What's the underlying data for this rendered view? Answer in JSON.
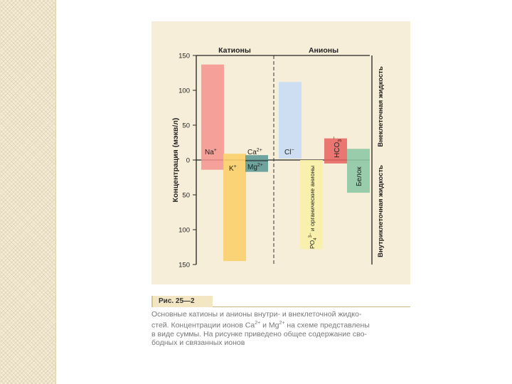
{
  "chart_data": {
    "type": "bar",
    "ylabel": "Концентрация (мэкв/л)",
    "top_region_label": "Внеклеточная жидкость",
    "bottom_region_label": "Внутриклеточная жидкость",
    "yticks": [
      "150",
      "100",
      "50",
      "0",
      "50",
      "100",
      "150"
    ],
    "ylim": [
      -150,
      150
    ],
    "groups": [
      {
        "label": "Катионы"
      },
      {
        "label": "Анионы"
      }
    ],
    "bars": [
      {
        "label": "Na+",
        "extra": [
          137,
          -14
        ],
        "color": "#f5938e"
      },
      {
        "label": "K+",
        "extra": [
          9,
          -145
        ],
        "color": "#f9cf6a"
      },
      {
        "label": "Ca2+ / Mg2+",
        "extra": [
          7,
          -17
        ],
        "color": "#5f9b96"
      },
      {
        "label": "Cl−",
        "extra": [
          112,
          2
        ],
        "color": "#c9dcf4"
      },
      {
        "label": "PO43− и органические анионы",
        "extra": [
          0,
          -128
        ],
        "color": "#fbf0a7"
      },
      {
        "label": "HCO3−",
        "extra": [
          31,
          -5
        ],
        "color": "#e7605f"
      },
      {
        "label": "Белок",
        "extra": [
          16,
          -47
        ],
        "color": "#8fc8a4"
      }
    ],
    "bar_labels": {
      "na": "Na",
      "na_sup": "+",
      "k": "K",
      "k_sup": "+",
      "ca": "Ca",
      "ca_sup": "2+",
      "mg": "Mg",
      "mg_sup": "2+",
      "cl": "Cl",
      "cl_sup": "−",
      "po4": "PO",
      "po4_sub": "4",
      "po4_sup": "3−",
      "po4_rest": " и органические анионы",
      "hco3": "HCO",
      "hco3_sub": "3",
      "hco3_sup": "−",
      "protein": "Белок"
    }
  },
  "caption": {
    "tag": "Рис. 25—2",
    "line1": "Основные катионы и анионы внутри- и внеклеточной жидко-",
    "line2a": "стей. Концентрации ионов Ca",
    "sup1": "2+",
    "line2b": " и Mg",
    "sup2": "2+",
    "line2c": " на схеме представлены",
    "line3": "в виде суммы. На рисунке приведено общее содержание сво-",
    "line4": "бодных и связанных ионов"
  },
  "colors": {
    "panel_bg": "#f6eed9",
    "axis": "#222222"
  }
}
